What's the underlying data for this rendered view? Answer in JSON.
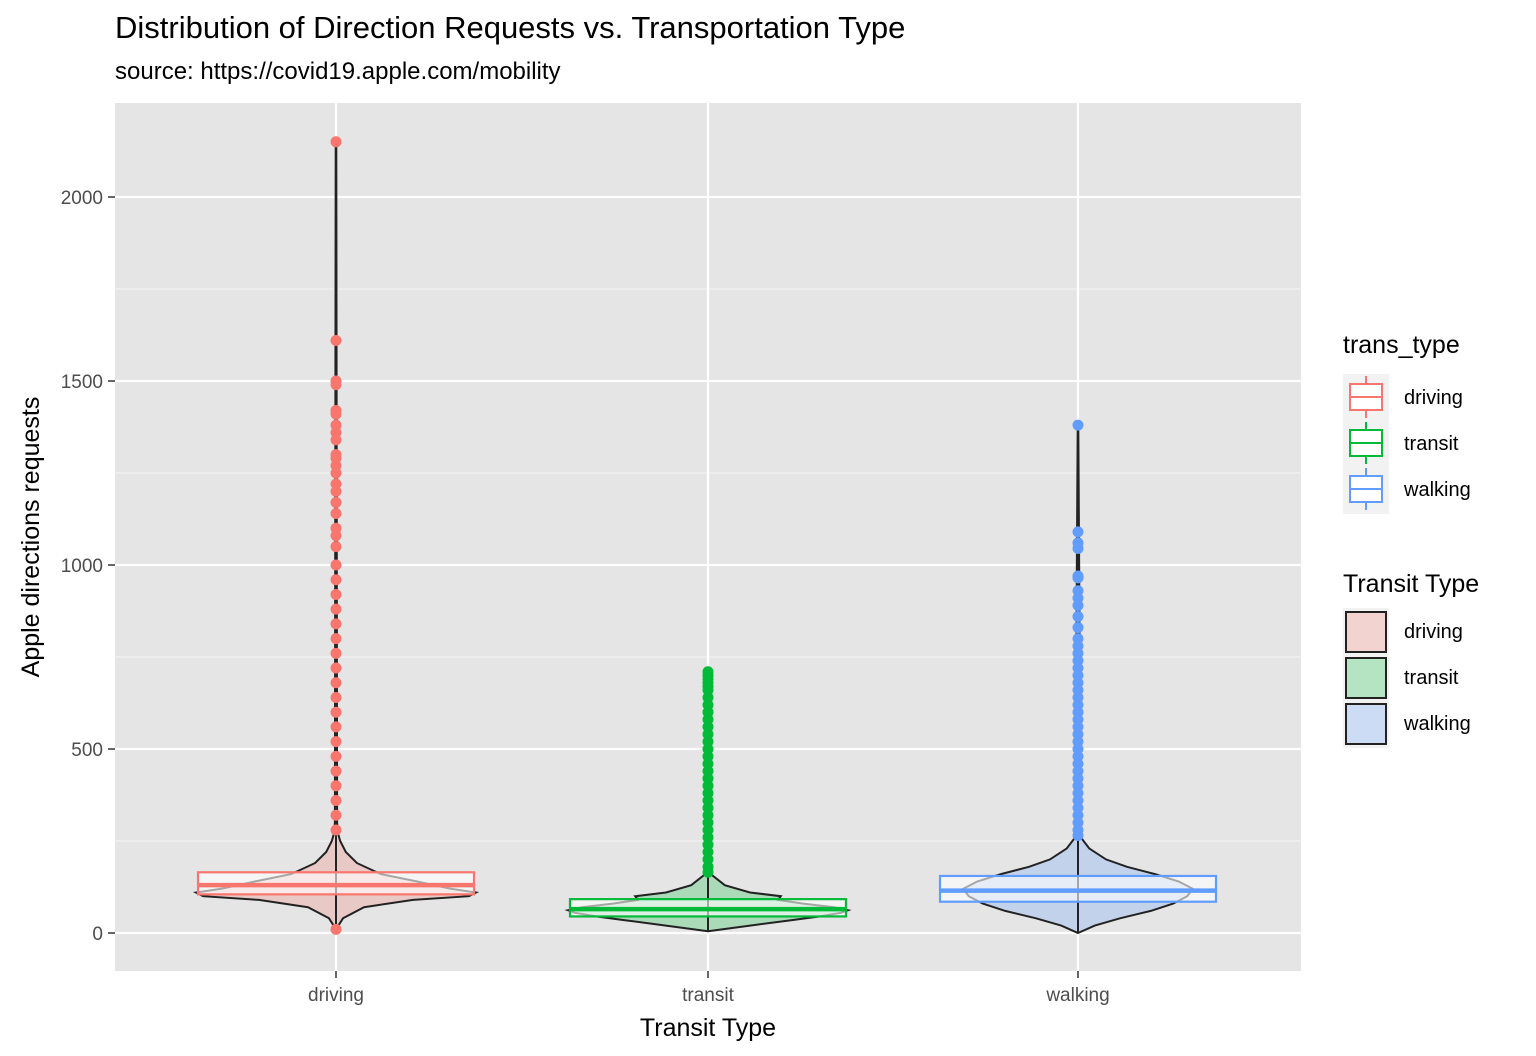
{
  "chart_data": {
    "type": "violin",
    "title": "Distribution of Direction Requests vs. Transportation Type",
    "subtitle": "source: https://covid19.apple.com/mobility",
    "xlabel": "Transit Type",
    "ylabel": "Apple directions requests",
    "categories": [
      "driving",
      "transit",
      "walking"
    ],
    "ylim": [
      -100,
      2250
    ],
    "yticks": [
      0,
      500,
      1000,
      1500,
      2000
    ],
    "grid": true,
    "series": [
      {
        "name": "driving",
        "color": "#F8766D",
        "fill": "#F8766D",
        "box": {
          "q1": 105,
          "median": 130,
          "q3": 165,
          "whisker_low": 10,
          "whisker_high": 2150
        },
        "violin": {
          "y": [
            10,
            40,
            70,
            90,
            100,
            110,
            120,
            130,
            140,
            160,
            190,
            220,
            250,
            270,
            300,
            2150
          ],
          "width": [
            0.0,
            0.05,
            0.2,
            0.55,
            0.95,
            1.0,
            0.82,
            0.7,
            0.58,
            0.32,
            0.15,
            0.07,
            0.03,
            0.015,
            0.008,
            0.002
          ]
        },
        "outliers": [
          10,
          2150,
          1610,
          1500,
          1490,
          1420,
          1410,
          1380,
          1360,
          1340,
          1300,
          1290,
          1270,
          1250,
          1220,
          1200,
          1170,
          1140,
          1100,
          1080,
          1050,
          1000,
          960,
          920,
          880,
          840,
          800,
          760,
          720,
          680,
          640,
          600,
          560,
          520,
          480,
          440,
          400,
          360,
          320,
          280
        ]
      },
      {
        "name": "transit",
        "color": "#00BA38",
        "fill": "#00BA38",
        "box": {
          "q1": 45,
          "median": 65,
          "q3": 92,
          "whisker_low": 5,
          "whisker_high": 710
        },
        "violin": {
          "y": [
            5,
            20,
            35,
            45,
            55,
            62,
            70,
            80,
            90,
            100,
            110,
            130,
            160,
            710
          ],
          "width": [
            0.0,
            0.3,
            0.6,
            0.8,
            0.95,
            1.0,
            0.9,
            0.68,
            0.5,
            0.52,
            0.3,
            0.12,
            0.02,
            0.002
          ]
        },
        "outliers": [
          710,
          700,
          690,
          680,
          670,
          660,
          640,
          620,
          600,
          580,
          560,
          540,
          520,
          500,
          480,
          460,
          440,
          420,
          400,
          380,
          360,
          340,
          320,
          300,
          280,
          260,
          240,
          220,
          200,
          180,
          165
        ]
      },
      {
        "name": "walking",
        "color": "#619CFF",
        "fill": "#619CFF",
        "box": {
          "q1": 85,
          "median": 115,
          "q3": 155,
          "whisker_low": 0,
          "whisker_high": 1380
        },
        "violin": {
          "y": [
            0,
            20,
            40,
            60,
            80,
            100,
            120,
            140,
            160,
            180,
            200,
            230,
            260,
            1380
          ],
          "width": [
            0.0,
            0.12,
            0.3,
            0.52,
            0.68,
            0.78,
            0.82,
            0.72,
            0.55,
            0.35,
            0.2,
            0.08,
            0.02,
            0.002
          ]
        },
        "outliers": [
          1380,
          1090,
          1060,
          1045,
          970,
          965,
          930,
          910,
          890,
          860,
          830,
          800,
          780,
          760,
          740,
          720,
          700,
          680,
          660,
          640,
          620,
          600,
          580,
          560,
          540,
          520,
          500,
          480,
          460,
          440,
          420,
          400,
          380,
          360,
          340,
          320,
          300,
          280,
          265
        ]
      }
    ],
    "legends": [
      {
        "title": "trans_type",
        "kind": "box",
        "items": [
          "driving",
          "transit",
          "walking"
        ]
      },
      {
        "title": "Transit Type",
        "kind": "fill",
        "items": [
          "driving",
          "transit",
          "walking"
        ]
      }
    ]
  }
}
